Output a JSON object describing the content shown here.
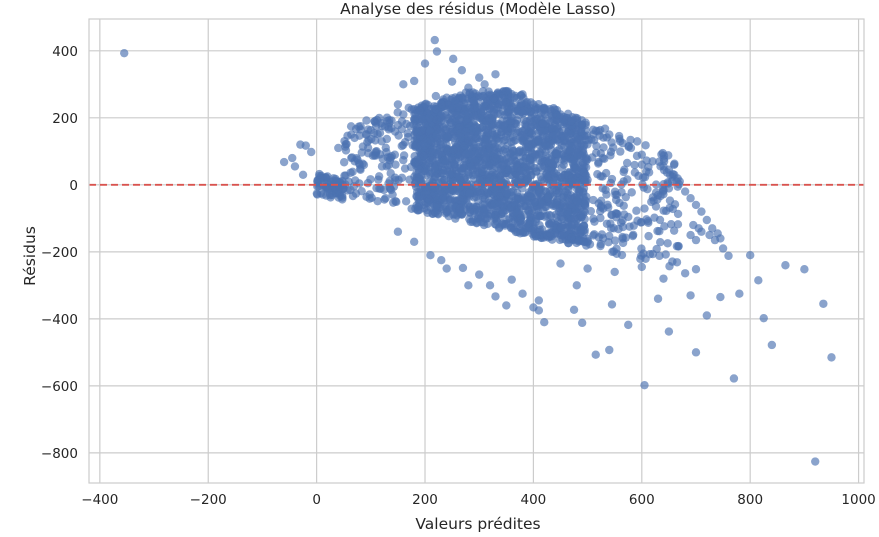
{
  "chart_data": {
    "type": "scatter",
    "title": "Analyse des résidus (Modèle Lasso)",
    "xlabel": "Valeurs prédites",
    "ylabel": "Résidus",
    "xlim": [
      -420,
      1010
    ],
    "ylim": [
      -890,
      495
    ],
    "xticks": [
      -400,
      -200,
      0,
      200,
      400,
      600,
      800,
      1000
    ],
    "yticks": [
      400,
      200,
      0,
      -200,
      -400,
      -600,
      -800
    ],
    "xtick_labels": [
      "−400",
      "−200",
      "0",
      "200",
      "400",
      "600",
      "800",
      "1000"
    ],
    "ytick_labels": [
      "400",
      "200",
      "0",
      "−200",
      "−400",
      "−600",
      "−800"
    ],
    "grid": true,
    "reference_line": {
      "y": 0,
      "style": "dashed",
      "color": "#d9534f"
    },
    "point_color": "#4c72b0",
    "point_opacity": 0.65,
    "series": [
      {
        "points": [
          [
            -355,
            393
          ],
          [
            218,
            432
          ],
          [
            222,
            398
          ],
          [
            200,
            362
          ],
          [
            252,
            376
          ],
          [
            268,
            342
          ],
          [
            250,
            308
          ],
          [
            180,
            310
          ],
          [
            160,
            300
          ],
          [
            -45,
            80
          ],
          [
            -60,
            68
          ],
          [
            -40,
            55
          ],
          [
            -30,
            120
          ],
          [
            -20,
            117
          ],
          [
            -10,
            98
          ],
          [
            -25,
            30
          ],
          [
            5,
            32
          ],
          [
            20,
            25
          ],
          [
            515,
            -507
          ],
          [
            540,
            -493
          ],
          [
            605,
            -598
          ],
          [
            700,
            -500
          ],
          [
            770,
            -578
          ],
          [
            920,
            -826
          ],
          [
            950,
            -515
          ],
          [
            935,
            -355
          ],
          [
            900,
            -252
          ],
          [
            865,
            -240
          ],
          [
            825,
            -398
          ],
          [
            840,
            -478
          ],
          [
            780,
            -325
          ],
          [
            745,
            -335
          ],
          [
            800,
            -210
          ],
          [
            815,
            -285
          ],
          [
            720,
            -390
          ],
          [
            690,
            -330
          ],
          [
            650,
            -438
          ],
          [
            630,
            -340
          ],
          [
            575,
            -418
          ],
          [
            490,
            -412
          ],
          [
            475,
            -373
          ],
          [
            420,
            -410
          ],
          [
            410,
            -345
          ],
          [
            320,
            -300
          ],
          [
            280,
            -300
          ],
          [
            240,
            -250
          ],
          [
            380,
            -325
          ],
          [
            400,
            -366
          ],
          [
            410,
            -375
          ],
          [
            545,
            -357
          ],
          [
            680,
            -264
          ],
          [
            760,
            -212
          ],
          [
            700,
            -252
          ],
          [
            640,
            -280
          ],
          [
            600,
            -245
          ],
          [
            550,
            -260
          ],
          [
            500,
            -250
          ],
          [
            450,
            -235
          ],
          [
            480,
            -300
          ],
          [
            330,
            -333
          ],
          [
            350,
            -360
          ],
          [
            360,
            -283
          ],
          [
            300,
            -268
          ],
          [
            270,
            -248
          ],
          [
            230,
            -225
          ],
          [
            210,
            -210
          ],
          [
            180,
            -170
          ],
          [
            150,
            -140
          ],
          [
            300,
            320
          ],
          [
            330,
            330
          ],
          [
            310,
            300
          ],
          [
            350,
            280
          ],
          [
            380,
            270
          ],
          [
            280,
            290
          ],
          [
            240,
            260
          ],
          [
            220,
            265
          ],
          [
            260,
            230
          ],
          [
            200,
            240
          ],
          [
            150,
            240
          ],
          [
            170,
            230
          ],
          [
            130,
            190
          ],
          [
            95,
            165
          ],
          [
            70,
            140
          ],
          [
            40,
            110
          ],
          [
            120,
            130
          ],
          [
            160,
            210
          ],
          [
            190,
            220
          ],
          [
            290,
            250
          ],
          [
            400,
            240
          ],
          [
            420,
            230
          ],
          [
            450,
            210
          ],
          [
            470,
            190
          ],
          [
            490,
            180
          ],
          [
            520,
            160
          ],
          [
            540,
            150
          ],
          [
            560,
            130
          ],
          [
            580,
            110
          ],
          [
            600,
            90
          ],
          [
            620,
            70
          ],
          [
            640,
            55
          ],
          [
            650,
            45
          ],
          [
            660,
            30
          ],
          [
            670,
            10
          ],
          [
            680,
            -20
          ],
          [
            690,
            -40
          ],
          [
            700,
            -60
          ],
          [
            710,
            -80
          ],
          [
            720,
            -105
          ],
          [
            730,
            -130
          ],
          [
            745,
            -160
          ],
          [
            750,
            -190
          ],
          [
            705,
            -130
          ],
          [
            700,
            -165
          ],
          [
            695,
            -120
          ],
          [
            690,
            -150
          ],
          [
            710,
            -140
          ],
          [
            725,
            -150
          ],
          [
            735,
            -165
          ],
          [
            740,
            -145
          ]
        ]
      }
    ]
  }
}
